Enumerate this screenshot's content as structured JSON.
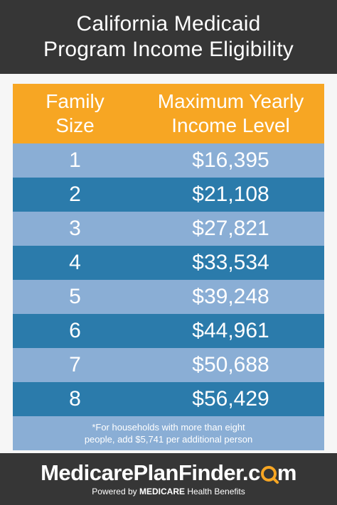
{
  "header": {
    "line1": "California Medicaid",
    "line2": "Program Income Eligibility"
  },
  "table": {
    "col1_header": [
      "Family",
      "Size"
    ],
    "col2_header": [
      "Maximum Yearly",
      "Income Level"
    ],
    "rows": [
      {
        "size": "1",
        "income": "$16,395"
      },
      {
        "size": "2",
        "income": "$21,108"
      },
      {
        "size": "3",
        "income": "$27,821"
      },
      {
        "size": "4",
        "income": "$33,534"
      },
      {
        "size": "5",
        "income": "$39,248"
      },
      {
        "size": "6",
        "income": "$44,961"
      },
      {
        "size": "7",
        "income": "$50,688"
      },
      {
        "size": "8",
        "income": "$56,429"
      }
    ],
    "footnote": [
      "*For households with more than eight",
      "people, add $5,741 per additional person"
    ]
  },
  "brand": {
    "name_part1": "MedicarePlanFinder.c",
    "name_part2": "m",
    "tagline_powered": "Powered by",
    "tagline_medicare": "MEDICARE",
    "tagline_rest": "Health Benefits"
  },
  "colors": {
    "header_bg": "#363636",
    "table_header": "#f7a623",
    "row_light": "#8aaed5",
    "row_dark": "#2b7bab",
    "accent": "#f7a623"
  },
  "icons": {
    "brand_o": "magnifier-icon"
  }
}
